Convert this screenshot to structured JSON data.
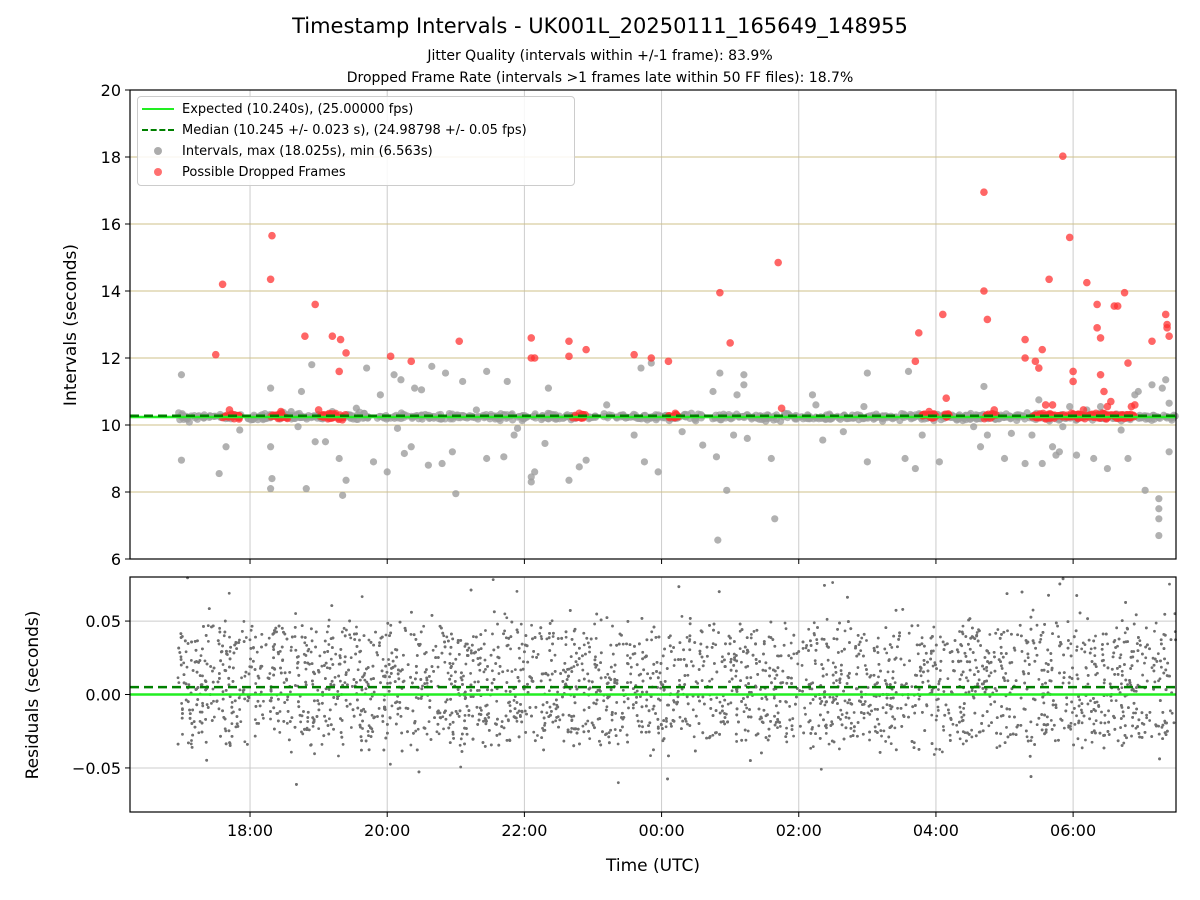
{
  "title": "Timestamp Intervals - UK001L_20250111_165649_148955",
  "subtitle_1": "Jitter Quality (intervals within +/-1 frame): 83.9%",
  "subtitle_2": "Dropped Frame Rate (intervals >1 frames late within 50 FF files): 18.7%",
  "colors": {
    "expected": "#22ee22",
    "median": "#008000",
    "intervals": "#9e9e9e",
    "dropped": "#ff3333",
    "residuals": "#707070",
    "top_grid": "#cfc08a",
    "grid": "#cccccc"
  },
  "chart_data": [
    {
      "type": "scatter",
      "panel": "intervals",
      "ylabel": "Intervals (seconds)",
      "ylim": [
        6,
        20
      ],
      "yticks": [
        "6",
        "8",
        "10",
        "12",
        "14",
        "16",
        "18",
        "20"
      ],
      "xlim_hours": [
        16.25,
        31.5
      ],
      "x_tick_hours": [
        18,
        20,
        22,
        24,
        26,
        28,
        30
      ],
      "grid": true,
      "legend_position": "top-left",
      "legend": [
        {
          "label": "Expected (10.240s), (25.00000 fps)",
          "kind": "line",
          "series": "expected"
        },
        {
          "label": "Median (10.245 +/- 0.023 s), (24.98798 +/- 0.05 fps)",
          "kind": "dashed",
          "series": "median"
        },
        {
          "label": "Intervals, max (18.025s), min (6.563s)",
          "kind": "dot",
          "series": "intervals"
        },
        {
          "label": "Possible Dropped Frames",
          "kind": "dot",
          "series": "dropped"
        }
      ],
      "expected_interval": 10.24,
      "median_interval": 10.245,
      "time_range_hours": [
        16.95,
        31.5
      ],
      "dropped_cluster_hours": [
        [
          17.6,
          17.85
        ],
        [
          18.3,
          18.55
        ],
        [
          19.0,
          19.4
        ],
        [
          22.7,
          22.9
        ],
        [
          24.1,
          24.25
        ],
        [
          27.8,
          28.0
        ],
        [
          28.1,
          28.2
        ],
        [
          28.7,
          28.9
        ],
        [
          29.4,
          30.9
        ]
      ],
      "intervals_outliers": [
        [
          17.0,
          11.5
        ],
        [
          17.0,
          8.95
        ],
        [
          17.55,
          8.55
        ],
        [
          17.65,
          9.35
        ],
        [
          17.85,
          9.85
        ],
        [
          18.3,
          11.1
        ],
        [
          18.3,
          9.35
        ],
        [
          18.32,
          8.4
        ],
        [
          18.3,
          8.1
        ],
        [
          18.6,
          10.4
        ],
        [
          18.7,
          9.95
        ],
        [
          18.75,
          11.0
        ],
        [
          18.82,
          8.1
        ],
        [
          18.9,
          11.8
        ],
        [
          18.95,
          9.5
        ],
        [
          19.1,
          9.5
        ],
        [
          19.2,
          10.4
        ],
        [
          19.3,
          9.0
        ],
        [
          19.35,
          7.9
        ],
        [
          19.4,
          8.35
        ],
        [
          19.55,
          10.5
        ],
        [
          19.7,
          11.7
        ],
        [
          19.8,
          8.9
        ],
        [
          19.9,
          10.9
        ],
        [
          20.0,
          8.6
        ],
        [
          20.1,
          11.5
        ],
        [
          20.15,
          9.9
        ],
        [
          20.2,
          11.35
        ],
        [
          20.25,
          9.15
        ],
        [
          20.35,
          9.35
        ],
        [
          20.4,
          11.1
        ],
        [
          20.5,
          11.05
        ],
        [
          20.6,
          8.8
        ],
        [
          20.65,
          11.75
        ],
        [
          20.8,
          8.85
        ],
        [
          20.85,
          11.55
        ],
        [
          20.95,
          9.2
        ],
        [
          21.0,
          7.95
        ],
        [
          21.1,
          11.3
        ],
        [
          21.3,
          10.45
        ],
        [
          21.45,
          9.0
        ],
        [
          21.45,
          11.6
        ],
        [
          21.7,
          9.05
        ],
        [
          21.75,
          11.3
        ],
        [
          21.85,
          9.7
        ],
        [
          21.9,
          9.9
        ],
        [
          22.1,
          8.45
        ],
        [
          22.1,
          8.3
        ],
        [
          22.15,
          8.6
        ],
        [
          22.3,
          9.45
        ],
        [
          22.35,
          11.1
        ],
        [
          22.65,
          8.35
        ],
        [
          22.8,
          8.75
        ],
        [
          22.9,
          8.95
        ],
        [
          23.2,
          10.6
        ],
        [
          23.6,
          9.7
        ],
        [
          23.7,
          11.7
        ],
        [
          23.75,
          8.9
        ],
        [
          23.85,
          11.85
        ],
        [
          23.95,
          8.6
        ],
        [
          24.3,
          9.8
        ],
        [
          24.6,
          9.4
        ],
        [
          24.75,
          11.0
        ],
        [
          24.8,
          9.05
        ],
        [
          24.85,
          11.55
        ],
        [
          24.95,
          8.05
        ],
        [
          25.05,
          9.7
        ],
        [
          25.1,
          10.9
        ],
        [
          25.2,
          11.5
        ],
        [
          25.2,
          11.2
        ],
        [
          25.25,
          9.6
        ],
        [
          25.6,
          9.0
        ],
        [
          25.65,
          7.2
        ],
        [
          25.95,
          10.25
        ],
        [
          26.2,
          10.9
        ],
        [
          26.25,
          10.6
        ],
        [
          26.35,
          9.55
        ],
        [
          26.65,
          9.8
        ],
        [
          26.95,
          10.55
        ],
        [
          27.0,
          8.9
        ],
        [
          27.0,
          11.55
        ],
        [
          27.55,
          9.0
        ],
        [
          27.6,
          11.6
        ],
        [
          27.7,
          8.7
        ],
        [
          27.8,
          9.7
        ],
        [
          28.05,
          8.9
        ],
        [
          28.55,
          9.95
        ],
        [
          28.65,
          9.35
        ],
        [
          28.7,
          11.15
        ],
        [
          28.75,
          9.7
        ],
        [
          29.0,
          9.0
        ],
        [
          29.1,
          9.75
        ],
        [
          29.3,
          8.85
        ],
        [
          29.4,
          9.7
        ],
        [
          29.5,
          10.75
        ],
        [
          29.55,
          8.85
        ],
        [
          29.7,
          9.35
        ],
        [
          29.75,
          9.1
        ],
        [
          29.8,
          9.2
        ],
        [
          29.85,
          9.95
        ],
        [
          29.95,
          10.55
        ],
        [
          30.05,
          9.1
        ],
        [
          30.2,
          10.45
        ],
        [
          30.3,
          9.0
        ],
        [
          30.4,
          10.55
        ],
        [
          30.5,
          8.7
        ],
        [
          30.6,
          10.2
        ],
        [
          30.7,
          9.85
        ],
        [
          30.8,
          9.0
        ],
        [
          30.9,
          10.9
        ],
        [
          30.95,
          11.0
        ],
        [
          31.05,
          8.05
        ],
        [
          31.15,
          11.2
        ],
        [
          31.25,
          7.8
        ],
        [
          31.25,
          7.5
        ],
        [
          31.25,
          7.2
        ],
        [
          31.25,
          6.7
        ],
        [
          31.3,
          11.1
        ],
        [
          31.35,
          11.35
        ],
        [
          31.4,
          9.2
        ],
        [
          31.4,
          10.65
        ],
        [
          24.82,
          6.563
        ]
      ],
      "dropped_outliers": [
        [
          17.5,
          12.1
        ],
        [
          17.6,
          14.2
        ],
        [
          18.3,
          14.35
        ],
        [
          18.32,
          15.65
        ],
        [
          18.8,
          12.65
        ],
        [
          18.95,
          13.6
        ],
        [
          19.2,
          12.65
        ],
        [
          19.3,
          11.6
        ],
        [
          19.32,
          12.55
        ],
        [
          19.4,
          12.15
        ],
        [
          20.05,
          12.05
        ],
        [
          20.35,
          11.9
        ],
        [
          21.05,
          12.5
        ],
        [
          22.1,
          12.6
        ],
        [
          22.1,
          12.0
        ],
        [
          22.15,
          12.0
        ],
        [
          22.65,
          12.5
        ],
        [
          22.65,
          12.05
        ],
        [
          22.9,
          12.25
        ],
        [
          23.6,
          12.1
        ],
        [
          23.85,
          12.0
        ],
        [
          24.1,
          11.9
        ],
        [
          24.85,
          13.95
        ],
        [
          25.0,
          12.45
        ],
        [
          25.7,
          14.85
        ],
        [
          25.75,
          10.5
        ],
        [
          27.7,
          11.9
        ],
        [
          27.75,
          12.75
        ],
        [
          28.1,
          13.3
        ],
        [
          28.15,
          10.8
        ],
        [
          28.7,
          16.95
        ],
        [
          28.7,
          14.0
        ],
        [
          28.75,
          13.15
        ],
        [
          29.3,
          12.55
        ],
        [
          29.3,
          12.0
        ],
        [
          29.45,
          11.9
        ],
        [
          29.5,
          11.7
        ],
        [
          29.55,
          12.25
        ],
        [
          29.65,
          14.35
        ],
        [
          29.7,
          10.6
        ],
        [
          29.85,
          18.025
        ],
        [
          29.95,
          15.6
        ],
        [
          30.0,
          11.6
        ],
        [
          30.0,
          11.3
        ],
        [
          30.2,
          14.25
        ],
        [
          30.35,
          13.6
        ],
        [
          30.35,
          12.9
        ],
        [
          30.4,
          12.6
        ],
        [
          30.4,
          11.5
        ],
        [
          30.45,
          11.0
        ],
        [
          30.5,
          10.55
        ],
        [
          30.6,
          13.55
        ],
        [
          30.65,
          13.55
        ],
        [
          30.75,
          13.95
        ],
        [
          30.8,
          11.85
        ],
        [
          30.9,
          10.6
        ],
        [
          31.15,
          12.5
        ],
        [
          31.35,
          13.3
        ],
        [
          31.37,
          13.0
        ],
        [
          31.37,
          12.9
        ],
        [
          31.4,
          12.65
        ],
        [
          17.7,
          10.45
        ],
        [
          18.45,
          10.4
        ],
        [
          19.0,
          10.45
        ],
        [
          22.8,
          10.35
        ],
        [
          24.2,
          10.35
        ],
        [
          27.9,
          10.4
        ],
        [
          28.85,
          10.45
        ],
        [
          29.6,
          10.6
        ],
        [
          30.15,
          10.45
        ],
        [
          30.55,
          10.7
        ],
        [
          30.85,
          10.55
        ]
      ]
    },
    {
      "type": "scatter",
      "panel": "residuals",
      "xlabel": "Time (UTC)",
      "ylabel": "Residuals (seconds)",
      "ylim": [
        -0.08,
        0.08
      ],
      "yticks": [
        "−0.05",
        "0.00",
        "0.05"
      ],
      "ytick_values": [
        -0.05,
        0.0,
        0.05
      ],
      "xlim_hours": [
        16.25,
        31.5
      ],
      "x_tick_labels": [
        "18:00",
        "20:00",
        "22:00",
        "00:00",
        "02:00",
        "04:00",
        "06:00"
      ],
      "x_tick_hours": [
        18,
        20,
        22,
        24,
        26,
        28,
        30
      ],
      "expected_residual": 0.0,
      "median_residual": 0.005,
      "typical_range": [
        -0.03,
        0.045
      ],
      "grid": true
    }
  ]
}
